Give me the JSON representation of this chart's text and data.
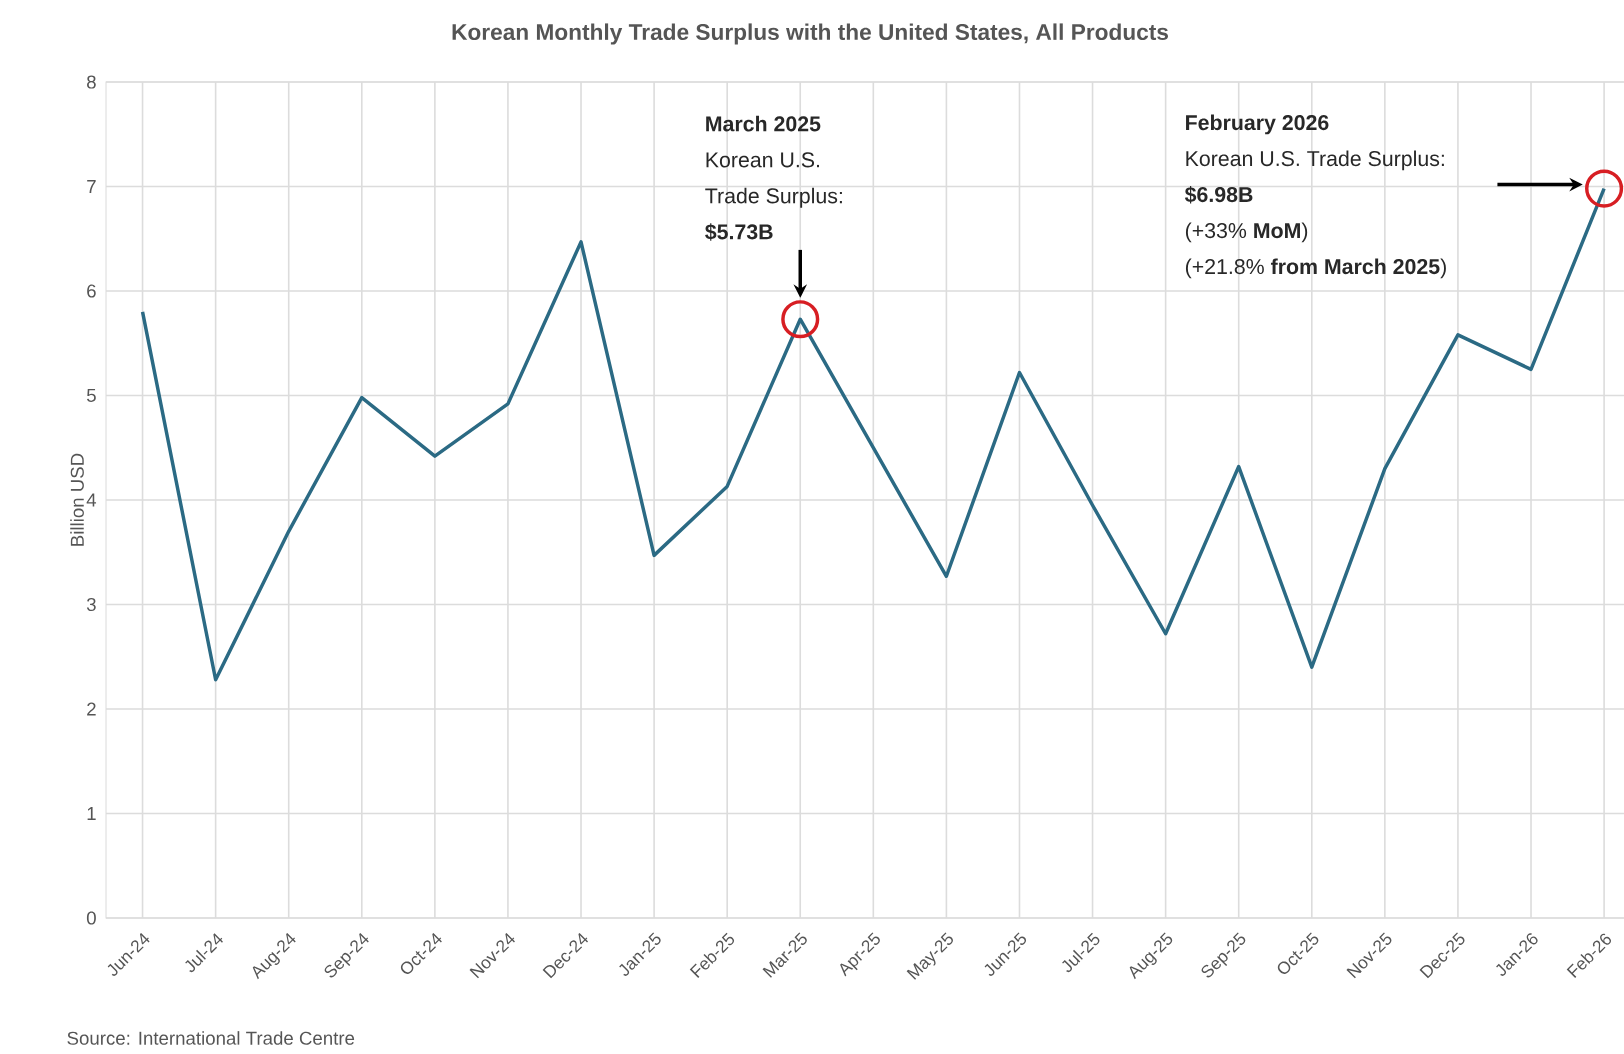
{
  "chart_data": {
    "type": "line",
    "title": "Korean Monthly Trade Surplus with the United States, All Products",
    "ylabel": "Billion USD",
    "categories": [
      "Jun-24",
      "Jul-24",
      "Aug-24",
      "Sep-24",
      "Oct-24",
      "Nov-24",
      "Dec-24",
      "Jan-25",
      "Feb-25",
      "Mar-25",
      "Apr-25",
      "May-25",
      "Jun-25",
      "Jul-25",
      "Aug-25",
      "Sep-25",
      "Oct-25",
      "Nov-25",
      "Dec-25",
      "Jan-26",
      "Feb-26"
    ],
    "series": [
      {
        "color": "#2b6a84",
        "values": [
          5.8,
          2.28,
          3.7,
          4.98,
          4.42,
          4.92,
          6.47,
          3.47,
          4.13,
          5.73,
          4.5,
          3.27,
          5.22,
          3.95,
          2.72,
          4.32,
          2.4,
          4.3,
          5.58,
          5.25,
          6.98
        ]
      }
    ],
    "ylim": [
      0,
      8
    ],
    "yticks": [
      0,
      1,
      2,
      3,
      4,
      5,
      6,
      7,
      8
    ],
    "grid": true,
    "marker": "none",
    "line_style": "solid",
    "annotations": [
      "**March 2025**",
      "Korean U.S.",
      "Trade Surplus:",
      "**$5.73B**",
      "**February 2026**",
      "Korean U.S. Trade Surplus:",
      "**$6.98B**",
      "(+33% **MoM**)",
      "(+21.8% **from March 2025**)",
      "Source: International Trade Centre"
    ]
  }
}
